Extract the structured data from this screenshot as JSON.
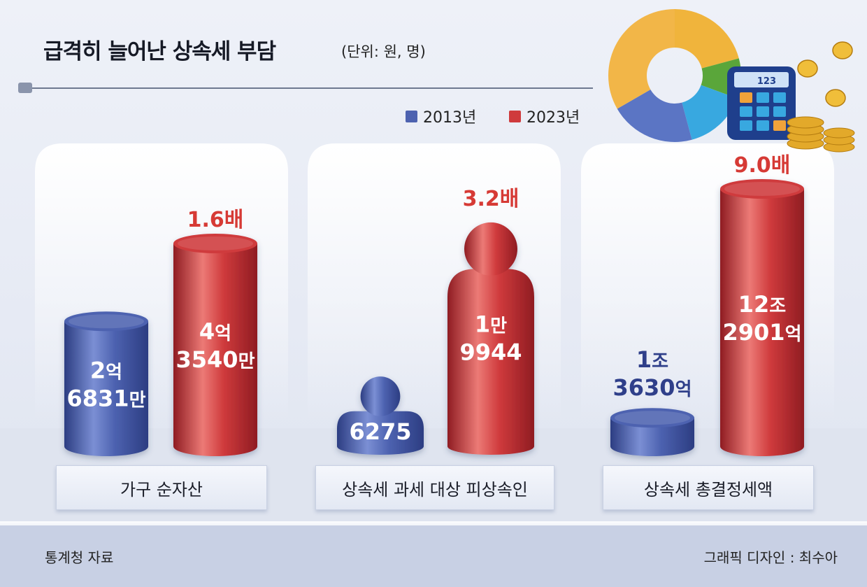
{
  "header": {
    "title": "급격히 늘어난 상속세 부담",
    "unit": "(단위: 원, 명)"
  },
  "legend": [
    {
      "label": "2013년",
      "color": "#4d62b0"
    },
    {
      "label": "2023년",
      "color": "#cf3a3c"
    }
  ],
  "footer": {
    "source": "통계청 자료",
    "credit": "그래픽 디자인 : 최수아"
  },
  "colors": {
    "series_2013": "#4d62b0",
    "series_2023": "#cf3a3c",
    "multiplier_text": "#d63a35"
  },
  "decoration": [
    "donut-chart-illustration",
    "calculator-icon",
    "coin-stack-icon"
  ],
  "chart_data": [
    {
      "type": "bar",
      "category": "가구 순자산",
      "series": [
        {
          "name": "2013년",
          "value": 268310000,
          "label": [
            "2억",
            "6831만"
          ]
        },
        {
          "name": "2023년",
          "value": 435400000,
          "label": [
            "4억",
            "3540만"
          ]
        }
      ],
      "multiplier": "1.6배"
    },
    {
      "type": "bar",
      "category": "상속세 과세 대상 피상속인",
      "series": [
        {
          "name": "2013년",
          "value": 6275,
          "label": [
            "6275"
          ]
        },
        {
          "name": "2023년",
          "value": 19944,
          "label": [
            "1만",
            "9944"
          ]
        }
      ],
      "multiplier": "3.2배"
    },
    {
      "type": "bar",
      "category": "상속세 총결정세액",
      "series": [
        {
          "name": "2013년",
          "value": 1363000000000,
          "label": [
            "1조",
            "3630억"
          ]
        },
        {
          "name": "2023년",
          "value": 12290100000000,
          "label": [
            "12조",
            "2901억"
          ]
        }
      ],
      "multiplier": "9.0배"
    }
  ]
}
